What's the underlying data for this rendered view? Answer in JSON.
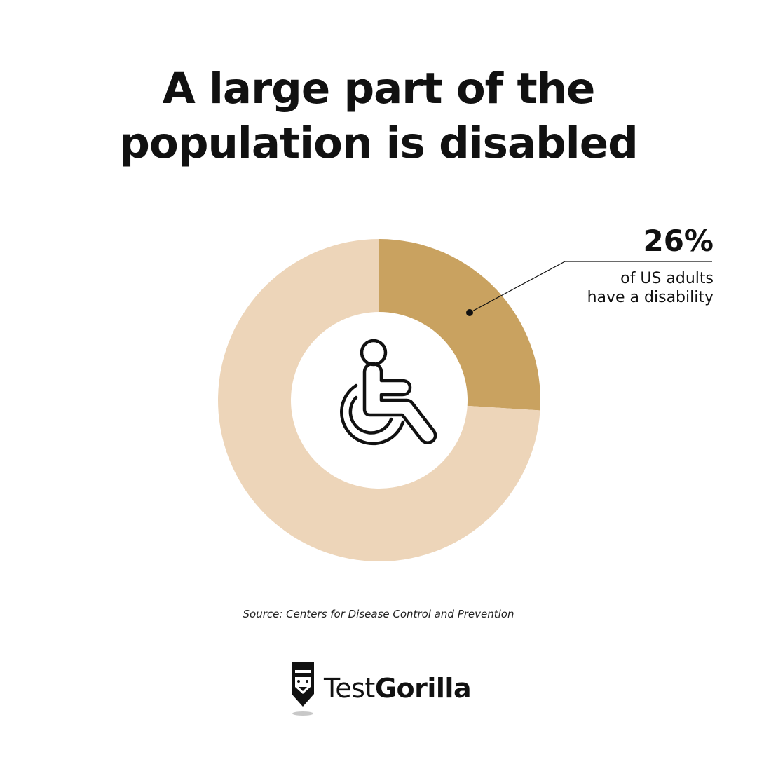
{
  "title": {
    "line1": "A large part of the",
    "line2": "population is disabled"
  },
  "chart_data": {
    "type": "pie",
    "style": "donut",
    "slices": [
      {
        "label": "of US adults have a disability",
        "value": 26,
        "color": "#c9a260"
      },
      {
        "label": "",
        "value": 74,
        "color": "#edd5b9"
      }
    ],
    "center_icon": "wheelchair-icon",
    "annotation": {
      "value_text": "26%",
      "text_line1": "of US adults",
      "text_line2": "have a disability"
    }
  },
  "source": "Source: Centers for Disease Control and Prevention",
  "brand": {
    "name_part1": "Test",
    "name_part2": "Gorilla",
    "icon": "gorilla-logo-icon"
  }
}
